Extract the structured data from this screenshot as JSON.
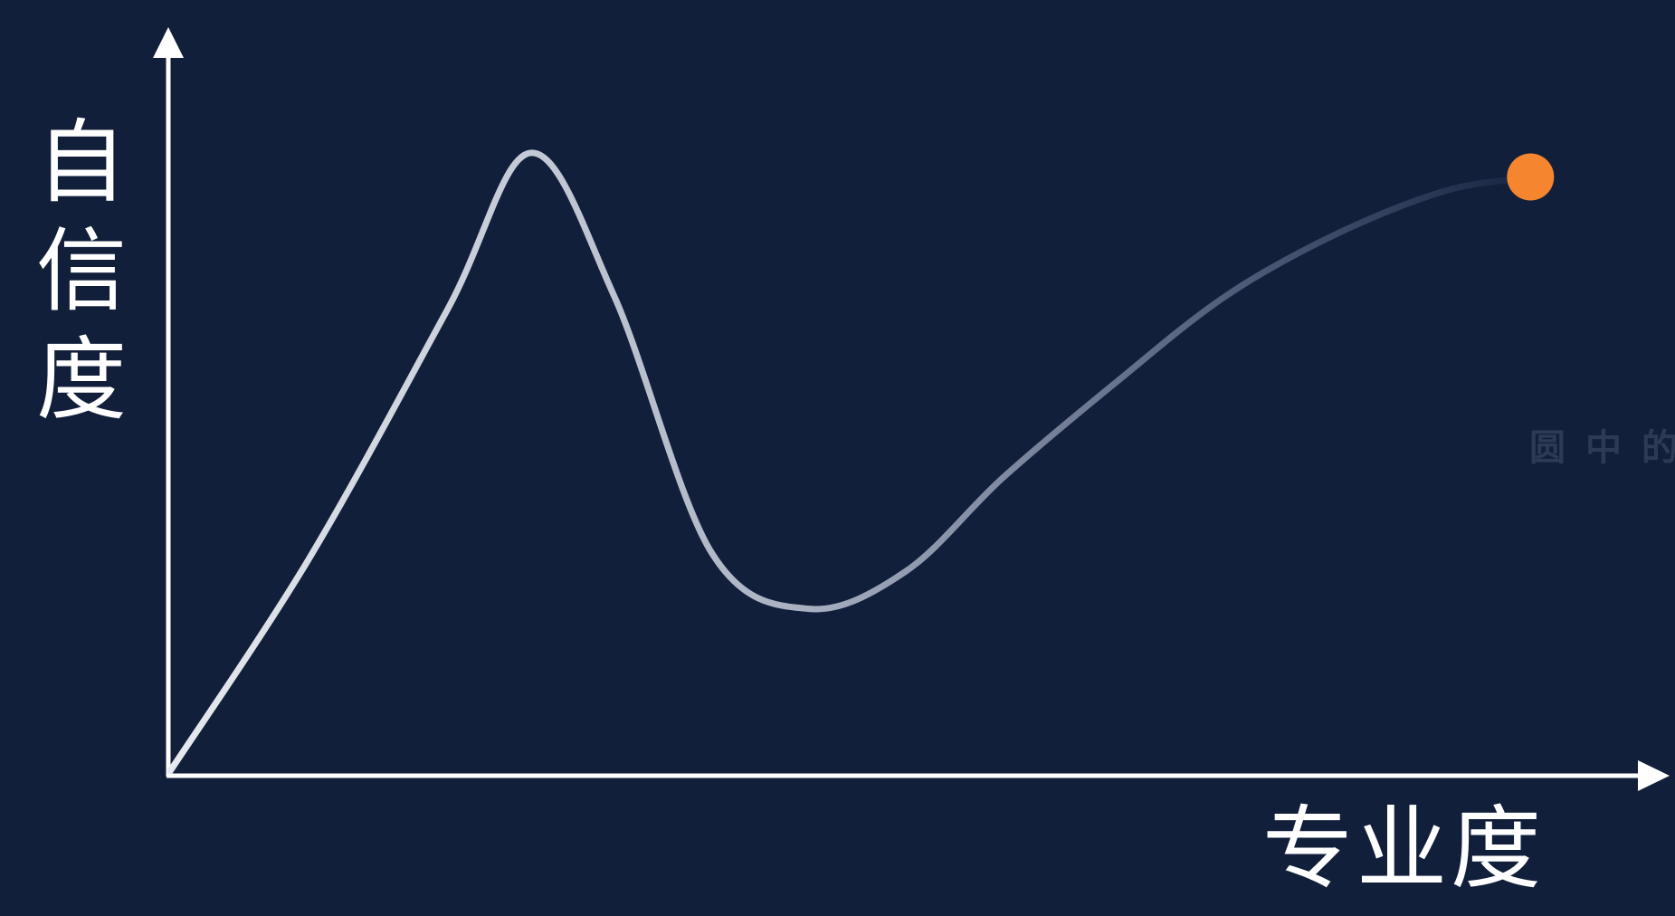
{
  "chart_data": {
    "type": "line",
    "title": "",
    "xlabel": "专业度",
    "ylabel": "自信度",
    "xlim": [
      0,
      10
    ],
    "ylim": [
      0,
      10
    ],
    "grid": false,
    "legend": "none",
    "series": [
      {
        "x": [
          0,
          1.0,
          2.0,
          2.6,
          3.2,
          3.9,
          4.6,
          5.3,
          6.0,
          6.8,
          7.6,
          8.4,
          9.2,
          9.8
        ],
        "values": [
          0,
          3.4,
          7.4,
          9.9,
          7.6,
          3.5,
          2.6,
          3.2,
          4.7,
          6.2,
          7.6,
          8.6,
          9.3,
          9.5
        ]
      }
    ],
    "highlight_point": {
      "x": 9.8,
      "y": 9.5
    },
    "colors": {
      "background": "#121f3b",
      "axis": "#ffffff",
      "curve_start": "#e6e9ef",
      "curve_end": "#121f3b",
      "highlight": "#f5852f"
    }
  },
  "watermark": "圆中的"
}
